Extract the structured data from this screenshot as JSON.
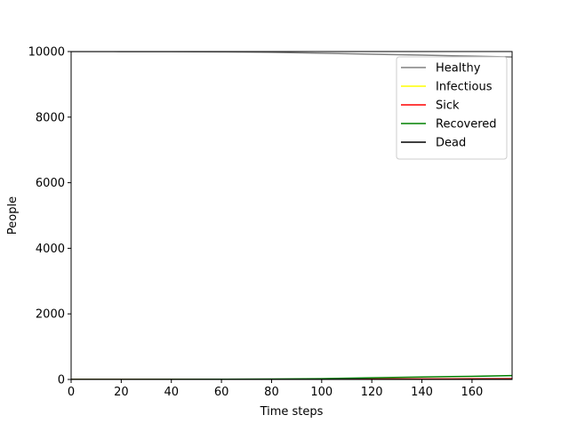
{
  "chart_data": {
    "type": "line",
    "title": "",
    "xlabel": "Time steps",
    "ylabel": "People",
    "xlim": [
      0,
      176
    ],
    "ylim": [
      0,
      10000
    ],
    "xticks": [
      0,
      20,
      40,
      60,
      80,
      100,
      120,
      140,
      160
    ],
    "yticks": [
      0,
      2000,
      4000,
      6000,
      8000,
      10000
    ],
    "grid": false,
    "legend_position": "top-right",
    "series": [
      {
        "name": "Healthy",
        "color": "#808080",
        "x": [
          0,
          20,
          40,
          60,
          80,
          100,
          120,
          140,
          160,
          176
        ],
        "y": [
          10000,
          9998,
          9995,
          9990,
          9975,
          9950,
          9920,
          9890,
          9860,
          9835
        ]
      },
      {
        "name": "Infectious",
        "color": "#ffff00",
        "x": [
          0,
          20,
          40,
          60,
          80,
          100,
          120,
          140,
          160,
          176
        ],
        "y": [
          1,
          1,
          2,
          3,
          4,
          5,
          6,
          7,
          8,
          9
        ]
      },
      {
        "name": "Sick",
        "color": "#ff0000",
        "x": [
          0,
          20,
          40,
          60,
          80,
          100,
          120,
          140,
          160,
          176
        ],
        "y": [
          0,
          1,
          2,
          3,
          5,
          8,
          12,
          16,
          20,
          25
        ]
      },
      {
        "name": "Recovered",
        "color": "#008000",
        "x": [
          0,
          20,
          40,
          60,
          80,
          100,
          120,
          140,
          160,
          176
        ],
        "y": [
          0,
          1,
          3,
          7,
          15,
          25,
          50,
          75,
          95,
          120
        ]
      },
      {
        "name": "Dead",
        "color": "#000000",
        "x": [
          0,
          20,
          40,
          60,
          80,
          100,
          120,
          140,
          160,
          176
        ],
        "y": [
          0,
          0,
          0,
          0,
          0,
          1,
          1,
          1,
          2,
          2
        ]
      }
    ]
  }
}
